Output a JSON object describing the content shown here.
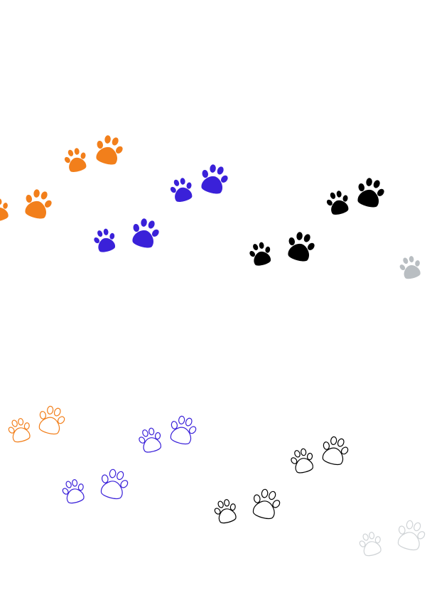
{
  "illustration": {
    "subject": "paw-print-trails",
    "background": "#ffffff",
    "colors": {
      "orange": "#f27f1b",
      "blue": "#3a21d9",
      "black": "#000000",
      "gray": "#b9bec2",
      "gray_light": "#cfd3d6"
    },
    "trails": [
      {
        "id": "orange-solid",
        "style": "solid",
        "color_key": "orange"
      },
      {
        "id": "blue-solid",
        "style": "solid",
        "color_key": "blue"
      },
      {
        "id": "black-solid",
        "style": "solid",
        "color_key": "black"
      },
      {
        "id": "gray-solid",
        "style": "solid",
        "color_key": "gray"
      },
      {
        "id": "orange-outline",
        "style": "outline",
        "color_key": "orange"
      },
      {
        "id": "blue-outline",
        "style": "outline",
        "color_key": "blue"
      },
      {
        "id": "black-outline",
        "style": "outline",
        "color_key": "black"
      },
      {
        "id": "gray-outline",
        "style": "outline",
        "color_key": "gray_light"
      }
    ]
  }
}
